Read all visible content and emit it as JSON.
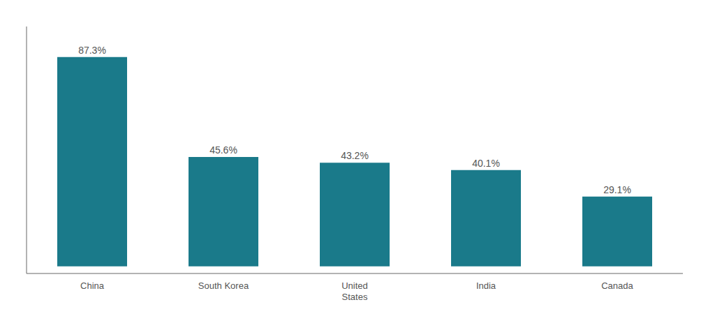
{
  "chart_data": {
    "type": "bar",
    "categories": [
      "China",
      "South Korea",
      "United\nStates",
      "India",
      "Canada"
    ],
    "values": [
      87.3,
      45.6,
      43.2,
      40.1,
      29.1
    ],
    "value_labels": [
      "87.3%",
      "45.6%",
      "43.2%",
      "40.1%",
      "29.1%"
    ],
    "color": "#1a7a8a",
    "ylim": [
      -3,
      100
    ],
    "grid": false,
    "data_labels": true,
    "tick_labels": "x"
  }
}
